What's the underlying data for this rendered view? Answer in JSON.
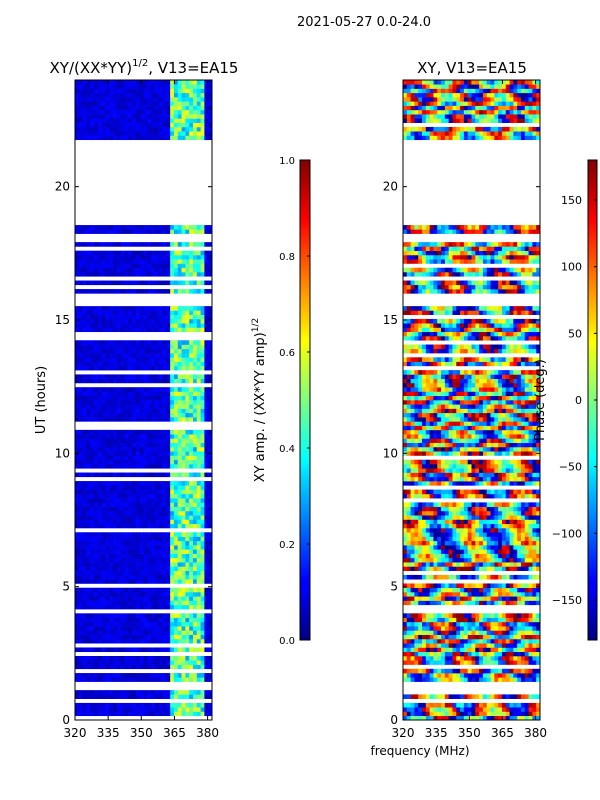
{
  "suptitle": "2021-05-27 0.0-24.0",
  "xlabel_shared": "frequency (MHz)",
  "chart_data": [
    {
      "type": "heatmap",
      "title": "XY/(XX*YY)",
      "title_exponent": "1/2",
      "title_suffix": ", V13=EA15",
      "xlabel": "",
      "ylabel": "UT (hours)",
      "xlim": [
        320,
        382
      ],
      "ylim": [
        0,
        24
      ],
      "xticks": [
        320,
        335,
        350,
        365,
        380
      ],
      "yticks": [
        0,
        5,
        10,
        15,
        20
      ],
      "colormap": "jet",
      "colorbar": {
        "label": "XY amp. / (XX*YY amp)",
        "label_exponent": "1/2",
        "range": [
          0.0,
          1.0
        ],
        "ticks": [
          "0.0",
          "0.2",
          "0.4",
          "0.6",
          "0.8",
          "1.0"
        ],
        "tick_values": [
          0.0,
          0.2,
          0.4,
          0.6,
          0.8,
          1.0
        ]
      },
      "data_gaps_ut": [
        [
          1.2,
          1.45
        ],
        [
          18.6,
          21.7
        ],
        [
          16.5,
          16.65
        ],
        [
          15.6,
          15.8
        ]
      ],
      "high_amplitude_band_mhz": [
        362,
        378
      ],
      "background_value": 0.05,
      "band_value": 0.45
    },
    {
      "type": "heatmap",
      "title": "XY, V13=EA15",
      "xlabel": "",
      "ylabel": "",
      "xlim": [
        320,
        382
      ],
      "ylim": [
        0,
        24
      ],
      "xticks": [
        320,
        335,
        350,
        365,
        380
      ],
      "yticks": [
        0,
        5,
        10,
        15,
        20
      ],
      "colormap": "jet",
      "colorbar": {
        "label": "Phase (deg.)",
        "range": [
          -180,
          180
        ],
        "ticks": [
          "−150",
          "−100",
          "−50",
          "0",
          "50",
          "100",
          "150"
        ],
        "tick_values": [
          -150,
          -100,
          -50,
          0,
          50,
          100,
          150
        ]
      },
      "data_gaps_ut": [
        [
          1.2,
          1.45
        ],
        [
          18.6,
          21.7
        ],
        [
          16.5,
          16.65
        ],
        [
          15.6,
          15.8
        ]
      ]
    }
  ]
}
